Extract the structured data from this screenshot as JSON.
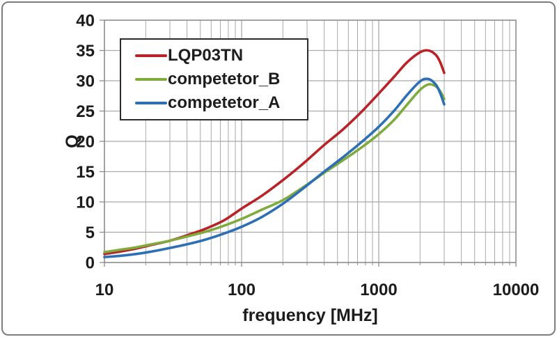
{
  "figure": {
    "background": "#ffffff",
    "frame_border_color": "#7d7d7d",
    "plot_border_color": "#8c8c8c",
    "gridline_color": "#a9a9a9",
    "tick_color": "#8c8c8c",
    "text_color": "#1c1c1c"
  },
  "chart_data": {
    "type": "line",
    "x_scale": "log",
    "title": "",
    "xlabel": "frequency [MHz]",
    "ylabel": "Q",
    "xlim": [
      10,
      10000
    ],
    "ylim": [
      0,
      40
    ],
    "x_ticks": [
      10,
      100,
      1000,
      10000
    ],
    "y_ticks": [
      0,
      5,
      10,
      15,
      20,
      25,
      30,
      35,
      40
    ],
    "grid": true,
    "legend_position": "upper-left",
    "series": [
      {
        "name": "LQP03TN",
        "color": "#b92227",
        "x": [
          10,
          13,
          17,
          22,
          30,
          40,
          55,
          75,
          100,
          140,
          200,
          280,
          400,
          550,
          750,
          1000,
          1300,
          1600,
          2000,
          2300,
          2600,
          2800,
          3000
        ],
        "y": [
          1.4,
          1.8,
          2.3,
          2.9,
          3.6,
          4.5,
          5.6,
          7.0,
          8.9,
          11.0,
          13.6,
          16.3,
          19.4,
          22.0,
          24.9,
          27.9,
          30.7,
          33.0,
          34.7,
          35.0,
          34.3,
          33.1,
          31.3
        ]
      },
      {
        "name": "competetor_B",
        "color": "#7fab3c",
        "x": [
          10,
          13,
          17,
          22,
          30,
          40,
          55,
          75,
          100,
          140,
          200,
          280,
          400,
          550,
          750,
          1000,
          1300,
          1600,
          2000,
          2300,
          2600,
          2800,
          3000
        ],
        "y": [
          1.7,
          2.1,
          2.5,
          3.0,
          3.6,
          4.3,
          5.1,
          6.1,
          7.2,
          8.7,
          10.3,
          12.4,
          14.8,
          16.9,
          19.0,
          21.2,
          23.6,
          26.0,
          28.5,
          29.4,
          29.1,
          28.3,
          27.0
        ]
      },
      {
        "name": "competetor_A",
        "color": "#2c6fb5",
        "x": [
          10,
          13,
          17,
          22,
          30,
          40,
          55,
          75,
          100,
          140,
          200,
          280,
          400,
          550,
          750,
          1000,
          1300,
          1600,
          2000,
          2300,
          2600,
          2800,
          3000
        ],
        "y": [
          0.9,
          1.1,
          1.4,
          1.8,
          2.4,
          3.0,
          3.8,
          4.8,
          5.9,
          7.5,
          9.7,
          12.2,
          15.0,
          17.4,
          19.9,
          22.4,
          25.1,
          27.6,
          29.9,
          30.3,
          29.4,
          28.0,
          26.1
        ]
      }
    ]
  },
  "legend": {
    "items": [
      {
        "label": "LQP03TN",
        "color": "#b92227"
      },
      {
        "label": "competetor_B",
        "color": "#7fab3c"
      },
      {
        "label": "competetor_A",
        "color": "#2c6fb5"
      }
    ]
  }
}
